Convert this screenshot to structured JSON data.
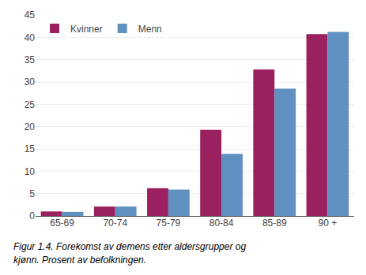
{
  "chart_data": {
    "type": "bar",
    "categories": [
      "65-69",
      "70-74",
      "75-79",
      "80-84",
      "85-89",
      "90 +"
    ],
    "series": [
      {
        "name": "Kvinner",
        "color": "#9B2060",
        "values": [
          1.0,
          2.1,
          6.2,
          19.3,
          32.8,
          40.7
        ]
      },
      {
        "name": "Menn",
        "color": "#6090C0",
        "values": [
          0.9,
          2.1,
          5.9,
          13.9,
          28.5,
          41.2
        ]
      }
    ],
    "ylim": [
      0,
      45
    ],
    "yticks": [
      0,
      5,
      10,
      15,
      20,
      25,
      30,
      35,
      40,
      45
    ],
    "grid": true,
    "legend": "upper left",
    "annotations": [
      "Figur 1.4. Forekomst av demens etter aldersgrupper og",
      "kjønn. Prosent av befolkningen."
    ]
  }
}
